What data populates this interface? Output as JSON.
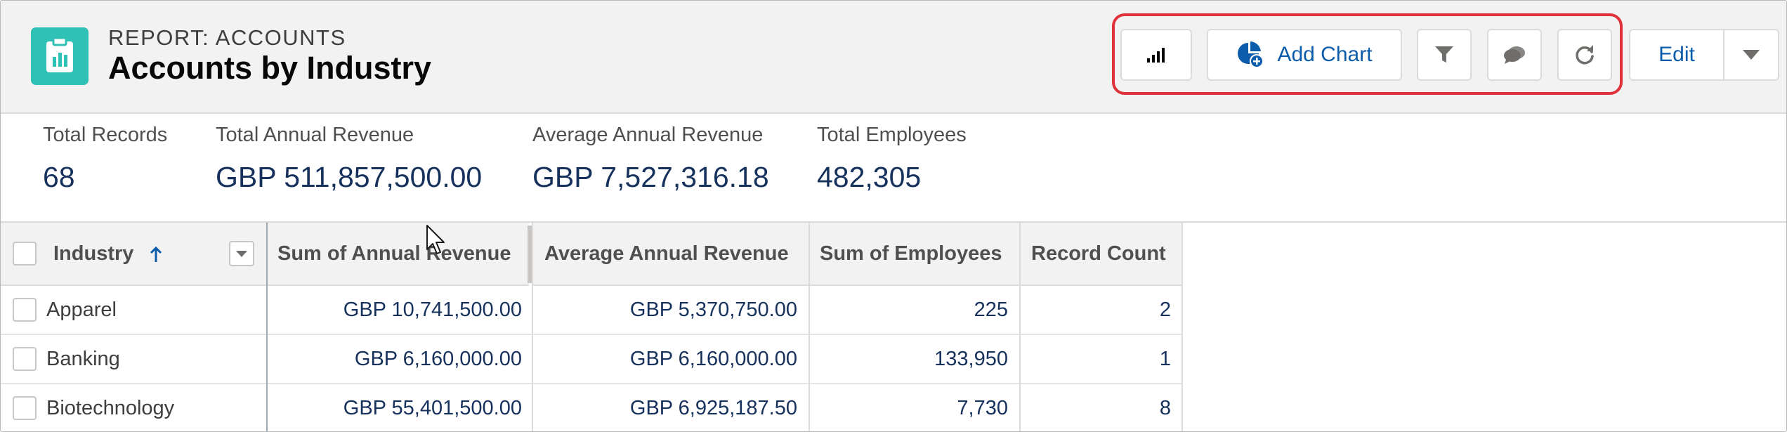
{
  "header": {
    "eyebrow": "REPORT: ACCOUNTS",
    "title": "Accounts by Industry",
    "app_icon": "report-clipboard-icon",
    "accent_color": "#2fc1b6"
  },
  "toolbar": {
    "chart_toggle_icon": "bar-chart-icon",
    "add_chart_label": "Add Chart",
    "add_chart_icon": "pie-chart-add-icon",
    "filter_icon": "filter-icon",
    "comments_icon": "chat-bubbles-icon",
    "refresh_icon": "refresh-icon",
    "edit_label": "Edit",
    "more_icon": "chevron-down-icon",
    "highlight_color": "#e0323a"
  },
  "summary": [
    {
      "label": "Total Records",
      "value": "68"
    },
    {
      "label": "Total Annual Revenue",
      "value": "GBP 511,857,500.00"
    },
    {
      "label": "Average Annual Revenue",
      "value": "GBP 7,527,316.18"
    },
    {
      "label": "Total Employees",
      "value": "482,305"
    }
  ],
  "table": {
    "columns": [
      {
        "label": "Industry",
        "sort": "ascending"
      },
      {
        "label": "Sum of Annual Revenue"
      },
      {
        "label": "Average Annual Revenue"
      },
      {
        "label": "Sum of Employees"
      },
      {
        "label": "Record Count"
      }
    ],
    "rows": [
      {
        "industry": "Apparel",
        "sum_revenue": "GBP 10,741,500.00",
        "avg_revenue": "GBP 5,370,750.00",
        "employees": "225",
        "count": "2"
      },
      {
        "industry": "Banking",
        "sum_revenue": "GBP 6,160,000.00",
        "avg_revenue": "GBP 6,160,000.00",
        "employees": "133,950",
        "count": "1"
      },
      {
        "industry": "Biotechnology",
        "sum_revenue": "GBP 55,401,500.00",
        "avg_revenue": "GBP 6,925,187.50",
        "employees": "7,730",
        "count": "8"
      }
    ]
  }
}
